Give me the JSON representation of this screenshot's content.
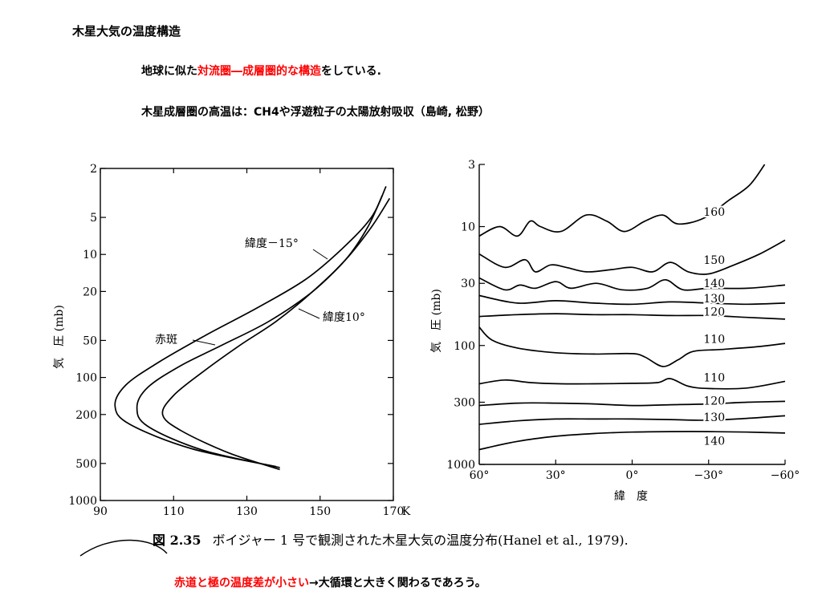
{
  "page": {
    "title": "木星大気の温度構造",
    "line1_pre": "地球に似た",
    "line1_red": "対流圏―成層圏的な構造",
    "line1_post": "をしている.",
    "line2": "木星成層圏の高温は：CH4や浮遊粒子の太陽放射吸収（島崎, 松野）",
    "caption_num": "図 2.35",
    "caption_text": "ボイジャー 1 号で観測された木星大気の温度分布(Hanel et al., 1979).",
    "bottom_red": "赤道と極の温度差が小さい",
    "bottom_post": "→大循環と大きく関わるであろう。"
  },
  "chart_data": [
    {
      "type": "line",
      "ylabel": "気　圧 (mb)",
      "xlabel": "",
      "x_unit": "K",
      "xlim": [
        90,
        170
      ],
      "ylim": [
        1000,
        2
      ],
      "y_scale": "log",
      "x_ticks": [
        "90",
        "110",
        "130",
        "150",
        "170"
      ],
      "y_ticks": [
        "2",
        "5",
        "10",
        "20",
        "50",
        "100",
        "200",
        "500",
        "1000"
      ],
      "series": [
        {
          "name": "緯度−15°",
          "label": "緯度－15°",
          "points": [
            [
              139,
              560
            ],
            [
              125,
              410
            ],
            [
              112,
              270
            ],
            [
              107,
              200
            ],
            [
              110,
              140
            ],
            [
              118,
              90
            ],
            [
              128,
              55
            ],
            [
              138,
              35
            ],
            [
              148,
              20
            ],
            [
              157,
              11
            ],
            [
              163,
              6
            ],
            [
              167,
              3.3
            ]
          ]
        },
        {
          "name": "緯度10°",
          "label": "緯度10°",
          "points": [
            [
              139,
              540
            ],
            [
              118,
              390
            ],
            [
              103,
              250
            ],
            [
              100,
              175
            ],
            [
              103,
              120
            ],
            [
              112,
              80
            ],
            [
              123,
              55
            ],
            [
              136,
              35
            ],
            [
              148,
              20
            ],
            [
              157,
              11
            ],
            [
              164,
              6
            ],
            [
              169,
              3.5
            ]
          ]
        },
        {
          "name": "赤斑",
          "label": "赤斑",
          "points": [
            [
              138,
              530
            ],
            [
              115,
              380
            ],
            [
              98,
              240
            ],
            [
              94,
              170
            ],
            [
              97,
              115
            ],
            [
              106,
              75
            ],
            [
              119,
              45
            ],
            [
              133,
              27
            ],
            [
              146,
              16
            ],
            [
              156,
              9
            ],
            [
              164,
              5
            ],
            [
              168,
              2.8
            ]
          ]
        }
      ]
    },
    {
      "type": "line",
      "ylabel": "気　圧 (mb)",
      "xlabel": "緯　度",
      "xlim": [
        60,
        -60
      ],
      "ylim": [
        1000,
        3
      ],
      "y_scale": "log",
      "x_ticks": [
        "60°",
        "30°",
        "0°",
        "−30°",
        "−60°"
      ],
      "y_ticks": [
        "3",
        "10",
        "30",
        "100",
        "300",
        "1000"
      ],
      "series": [
        {
          "name": "160",
          "points": [
            [
              60,
              12
            ],
            [
              52,
              10
            ],
            [
              45,
              12
            ],
            [
              40,
              9
            ],
            [
              36,
              10
            ],
            [
              28,
              11
            ],
            [
              18,
              8
            ],
            [
              10,
              9
            ],
            [
              3,
              11
            ],
            [
              -5,
              9
            ],
            [
              -12,
              8
            ],
            [
              -18,
              9.5
            ],
            [
              -28,
              8.5
            ],
            [
              -38,
              6
            ],
            [
              -46,
              4.5
            ],
            [
              -52,
              3
            ]
          ]
        },
        {
          "name": "150",
          "points": [
            [
              60,
              17
            ],
            [
              50,
              22
            ],
            [
              42,
              19
            ],
            [
              38,
              24
            ],
            [
              32,
              21
            ],
            [
              26,
              22
            ],
            [
              18,
              24
            ],
            [
              8,
              23
            ],
            [
              0,
              22
            ],
            [
              -8,
              24
            ],
            [
              -15,
              20
            ],
            [
              -22,
              24
            ],
            [
              -30,
              25
            ],
            [
              -40,
              21
            ],
            [
              -50,
              17
            ],
            [
              -60,
              13
            ]
          ]
        },
        {
          "name": "140",
          "points": [
            [
              60,
              27
            ],
            [
              50,
              34
            ],
            [
              44,
              31
            ],
            [
              38,
              33
            ],
            [
              30,
              29
            ],
            [
              24,
              33
            ],
            [
              14,
              30
            ],
            [
              4,
              34
            ],
            [
              -6,
              33
            ],
            [
              -13,
              28
            ],
            [
              -20,
              34
            ],
            [
              -30,
              33
            ],
            [
              -45,
              33
            ],
            [
              -60,
              31
            ]
          ]
        },
        {
          "name": "130",
          "points": [
            [
              60,
              38
            ],
            [
              45,
              44
            ],
            [
              30,
              42
            ],
            [
              15,
              44
            ],
            [
              0,
              45
            ],
            [
              -15,
              43
            ],
            [
              -30,
              44
            ],
            [
              -45,
              45
            ],
            [
              -60,
              44
            ]
          ]
        },
        {
          "name": "120",
          "points": [
            [
              60,
              57
            ],
            [
              45,
              55
            ],
            [
              30,
              54
            ],
            [
              15,
              55
            ],
            [
              0,
              55
            ],
            [
              -15,
              56
            ],
            [
              -30,
              56
            ],
            [
              -45,
              58
            ],
            [
              -60,
              60
            ]
          ]
        },
        {
          "name": "110",
          "points": [
            [
              60,
              70
            ],
            [
              55,
              90
            ],
            [
              45,
              105
            ],
            [
              30,
              115
            ],
            [
              15,
              118
            ],
            [
              0,
              117
            ],
            [
              -5,
              125
            ],
            [
              -12,
              150
            ],
            [
              -18,
              132
            ],
            [
              -24,
              112
            ],
            [
              -35,
              108
            ],
            [
              -50,
              102
            ],
            [
              -60,
              96
            ]
          ]
        },
        {
          "name": "110",
          "points": [
            [
              60,
              210
            ],
            [
              50,
              195
            ],
            [
              40,
              205
            ],
            [
              28,
              210
            ],
            [
              15,
              210
            ],
            [
              0,
              208
            ],
            [
              -10,
              205
            ],
            [
              -15,
              190
            ],
            [
              -22,
              220
            ],
            [
              -30,
              230
            ],
            [
              -45,
              228
            ],
            [
              -60,
              200
            ]
          ]
        },
        {
          "name": "120",
          "points": [
            [
              60,
              320
            ],
            [
              45,
              305
            ],
            [
              30,
              305
            ],
            [
              15,
              310
            ],
            [
              0,
              320
            ],
            [
              -15,
              315
            ],
            [
              -30,
              310
            ],
            [
              -45,
              300
            ],
            [
              -60,
              295
            ]
          ]
        },
        {
          "name": "130",
          "points": [
            [
              60,
              460
            ],
            [
              45,
              430
            ],
            [
              30,
              415
            ],
            [
              15,
              415
            ],
            [
              0,
              415
            ],
            [
              -15,
              420
            ],
            [
              -30,
              425
            ],
            [
              -45,
              410
            ],
            [
              -60,
              390
            ]
          ]
        },
        {
          "name": "140",
          "points": [
            [
              60,
              750
            ],
            [
              45,
              640
            ],
            [
              30,
              580
            ],
            [
              15,
              550
            ],
            [
              0,
              535
            ],
            [
              -15,
              530
            ],
            [
              -30,
              530
            ],
            [
              -45,
              535
            ],
            [
              -60,
              545
            ]
          ]
        }
      ]
    }
  ]
}
